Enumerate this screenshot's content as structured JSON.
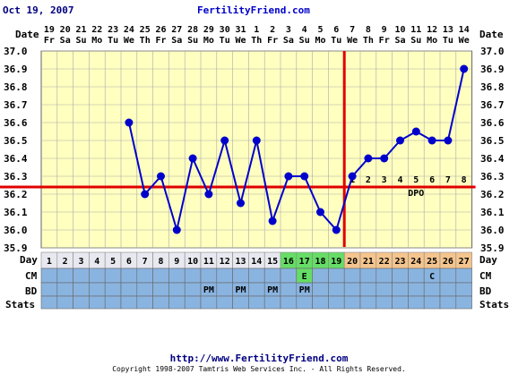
{
  "header": {
    "date": "Oct 19, 2007",
    "site": "FertilityFriend.com"
  },
  "footer": {
    "url": "http://www.FertilityFriend.com",
    "copyright": "Copyright 1998-2007 Tamtris Web Services Inc. - All Rights Reserved."
  },
  "row_labels": {
    "date": "Date",
    "day": "Day",
    "cm": "CM",
    "bd": "BD",
    "stats": "Stats",
    "dpo": "DPO"
  },
  "chart_data": {
    "type": "line",
    "title": "",
    "dates": [
      "19",
      "20",
      "21",
      "22",
      "23",
      "24",
      "25",
      "26",
      "27",
      "28",
      "29",
      "30",
      "31",
      "1",
      "2",
      "3",
      "4",
      "5",
      "6",
      "7",
      "8",
      "9",
      "10",
      "11",
      "12",
      "13",
      "14"
    ],
    "weekdays": [
      "Fr",
      "Sa",
      "Su",
      "Mo",
      "Tu",
      "We",
      "Th",
      "Fr",
      "Sa",
      "Su",
      "Mo",
      "Tu",
      "We",
      "Th",
      "Fr",
      "Sa",
      "Su",
      "Mo",
      "Tu",
      "We",
      "Th",
      "Fr",
      "Sa",
      "Su",
      "Mo",
      "Tu",
      "We"
    ],
    "cycle_days": [
      "1",
      "2",
      "3",
      "4",
      "5",
      "6",
      "7",
      "8",
      "9",
      "10",
      "11",
      "12",
      "13",
      "14",
      "15",
      "16",
      "17",
      "18",
      "19",
      "20",
      "21",
      "22",
      "23",
      "24",
      "25",
      "26",
      "27"
    ],
    "temperatures": [
      null,
      null,
      null,
      null,
      null,
      36.6,
      36.2,
      36.3,
      36.0,
      36.4,
      36.2,
      36.5,
      36.15,
      36.5,
      36.05,
      36.3,
      36.3,
      36.1,
      36.0,
      36.3,
      36.4,
      36.4,
      36.5,
      36.55,
      36.5,
      36.5,
      36.9
    ],
    "dpo_labels": [
      "",
      "",
      "",
      "",
      "",
      "",
      "",
      "",
      "",
      "",
      "",
      "",
      "",
      "",
      "",
      "",
      "",
      "",
      "",
      "1",
      "2",
      "3",
      "4",
      "5",
      "6",
      "7",
      "8"
    ],
    "cm": [
      "",
      "",
      "",
      "",
      "",
      "",
      "",
      "",
      "",
      "",
      "",
      "",
      "",
      "",
      "",
      "",
      "E",
      "",
      "",
      "",
      "",
      "",
      "",
      "",
      "C",
      "",
      ""
    ],
    "bd": [
      "",
      "",
      "",
      "",
      "",
      "",
      "",
      "",
      "",
      "",
      "PM",
      "",
      "PM",
      "",
      "PM",
      "",
      "PM",
      "",
      "",
      "",
      "",
      "",
      "",
      "",
      "",
      "",
      ""
    ],
    "day_highlight": [
      "none",
      "none",
      "none",
      "none",
      "none",
      "none",
      "none",
      "none",
      "none",
      "none",
      "none",
      "none",
      "none",
      "none",
      "none",
      "fertile",
      "fertile",
      "fertile",
      "fertile",
      "luteal",
      "luteal",
      "luteal",
      "luteal",
      "luteal",
      "luteal",
      "luteal",
      "luteal"
    ],
    "y_ticks": [
      "35.9",
      "36.0",
      "36.1",
      "36.2",
      "36.3",
      "36.4",
      "36.5",
      "36.6",
      "36.7",
      "36.8",
      "36.9",
      "37.0"
    ],
    "ylim": [
      35.9,
      37.0
    ],
    "coverline": 36.24,
    "ovulation_day_index": 18,
    "grid": true,
    "colors": {
      "background": "#ffffc0",
      "line": "#0000cc",
      "coverline": "#e00000",
      "fertile": "#66dd66",
      "luteal": "#f4c58e",
      "day_default": "#e8e8f0",
      "bottom_rows": "#8ab4e0",
      "grid": "#aaaaaa"
    }
  }
}
